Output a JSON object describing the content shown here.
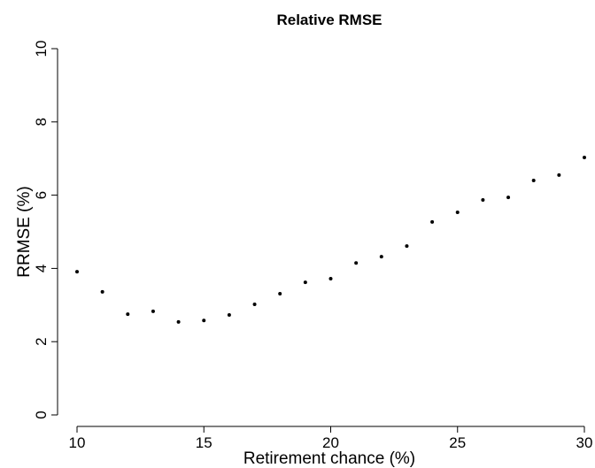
{
  "chart_data": {
    "type": "scatter",
    "title": "Relative RMSE",
    "x_label": "Retirement chance (%)",
    "y_label": "RRMSE (%)",
    "x": [
      10,
      11,
      12,
      13,
      14,
      15,
      16,
      17,
      18,
      19,
      20,
      21,
      22,
      23,
      24,
      25,
      26,
      27,
      28,
      29,
      30
    ],
    "values": [
      3.91,
      3.36,
      2.75,
      2.83,
      2.54,
      2.58,
      2.73,
      3.02,
      3.31,
      3.62,
      3.72,
      4.15,
      4.32,
      4.61,
      5.27,
      5.53,
      5.87,
      5.94,
      6.4,
      6.55,
      7.03
    ],
    "color": "#000000",
    "xlim": [
      10,
      30
    ],
    "xticks": [
      10,
      15,
      20,
      25,
      30
    ],
    "ylim": [
      0,
      10
    ],
    "yticks": [
      0,
      2,
      4,
      6,
      8,
      10
    ]
  }
}
